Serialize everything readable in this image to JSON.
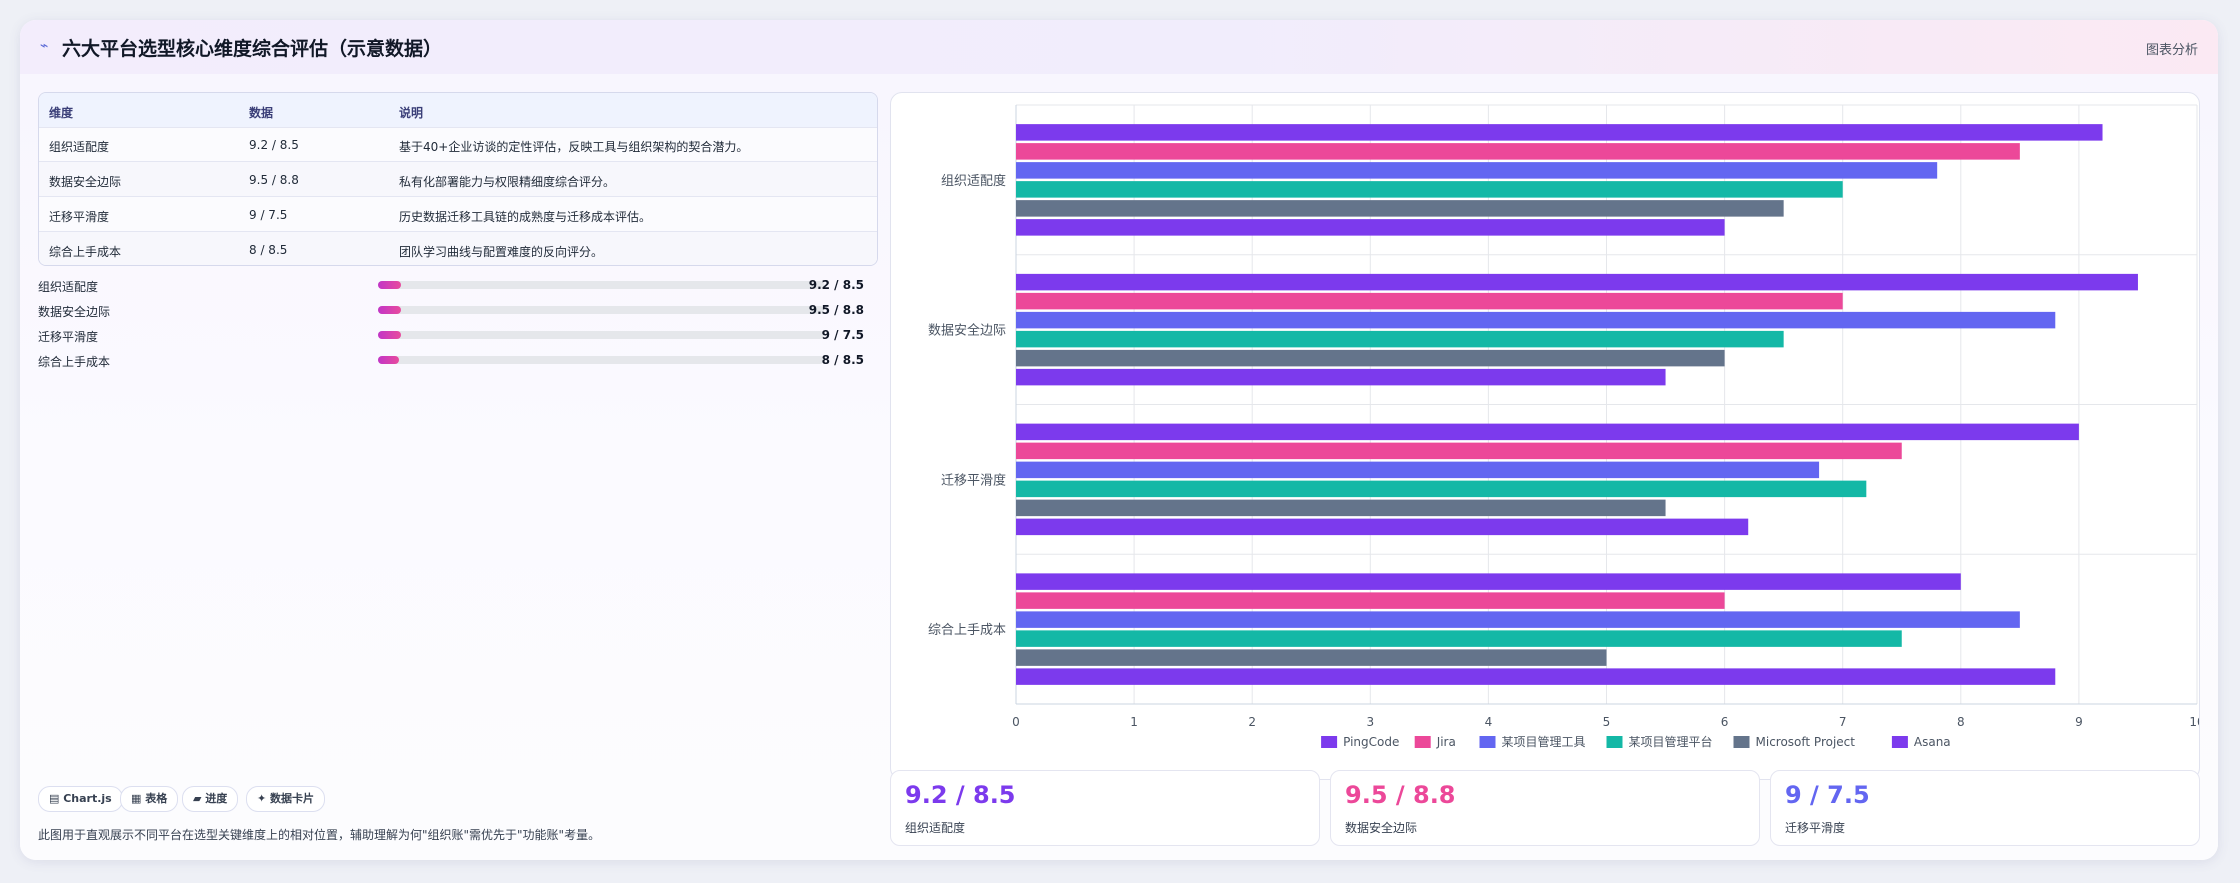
{
  "header": {
    "title": "六大平台选型核心维度综合评估（示意数据）",
    "action": "图表分析"
  },
  "table": {
    "columns": [
      "维度",
      "数据",
      "说明"
    ],
    "rows": [
      [
        "组织适配度",
        "9.2 / 8.5",
        "基于40+企业访谈的定性评估，反映工具与组织架构的契合潜力。"
      ],
      [
        "数据安全边际",
        "9.5 / 8.8",
        "私有化部署能力与权限精细度综合评分。"
      ],
      [
        "迁移平滑度",
        "9 / 7.5",
        "历史数据迁移工具链的成熟度与迁移成本评估。"
      ],
      [
        "综合上手成本",
        "8 / 8.5",
        "团队学习曲线与配置难度的反向评分。"
      ]
    ]
  },
  "progress": [
    {
      "label": "组织适配度",
      "value": "9.2 / 8.5",
      "fraction": 0.052
    },
    {
      "label": "数据安全边际",
      "value": "9.5 / 8.8",
      "fraction": 0.052
    },
    {
      "label": "迁移平滑度",
      "value": "9 / 7.5",
      "fraction": 0.052
    },
    {
      "label": "综合上手成本",
      "value": "8 / 8.5",
      "fraction": 0.046
    }
  ],
  "chips": [
    "▤ Chart.js",
    "▦ 表格",
    "▰ 进度",
    "✦ 数据卡片"
  ],
  "note": "此图用于直观展示不同平台在选型关键维度上的相对位置，辅助理解为何\"组织账\"需优先于\"功能账\"考量。",
  "stats": [
    {
      "value": "9.2 / 8.5",
      "label": "组织适配度",
      "color": "#7c3aed"
    },
    {
      "value": "9.5 / 8.8",
      "label": "数据安全边际",
      "color": "#ec4899"
    },
    {
      "value": "9 / 7.5",
      "label": "迁移平滑度",
      "color": "#6366f1"
    }
  ],
  "chart_data": {
    "type": "bar",
    "orientation": "horizontal",
    "categories": [
      "组织适配度",
      "数据安全边际",
      "迁移平滑度",
      "综合上手成本"
    ],
    "series": [
      {
        "name": "PingCode",
        "color": "#7c3aed",
        "values": [
          9.2,
          9.5,
          9.0,
          8.0
        ]
      },
      {
        "name": "Jira",
        "color": "#ec4899",
        "values": [
          8.5,
          7.0,
          7.5,
          6.0
        ]
      },
      {
        "name": "某项目管理工具",
        "color": "#6366f1",
        "values": [
          7.8,
          8.8,
          6.8,
          8.5
        ]
      },
      {
        "name": "某项目管理平台",
        "color": "#14b8a6",
        "values": [
          7.0,
          6.5,
          7.2,
          7.5
        ]
      },
      {
        "name": "Microsoft Project",
        "color": "#64748b",
        "values": [
          6.5,
          6.0,
          5.5,
          5.0
        ]
      },
      {
        "name": "Asana",
        "color": "#7c3aed",
        "values": [
          6.0,
          5.5,
          6.2,
          8.8
        ]
      }
    ],
    "xlim": [
      0,
      10
    ],
    "xticks": [
      "0",
      "1",
      "2",
      "3",
      "4",
      "5",
      "6",
      "7",
      "8",
      "9",
      "10"
    ],
    "grid": true,
    "legend": "bottom"
  }
}
